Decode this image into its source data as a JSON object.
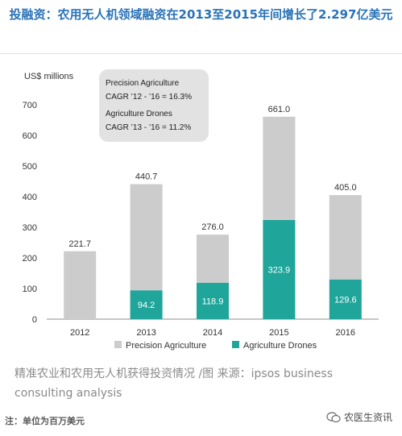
{
  "headline": "投融资：农用无人机领域融资在2013至2015年间增长了2.297亿美元",
  "chart_data": {
    "type": "bar",
    "stacked": true,
    "unit_label": "US$ millions",
    "categories": [
      "2012",
      "2013",
      "2014",
      "2015",
      "2016"
    ],
    "totals": [
      221.7,
      440.7,
      276.0,
      661.0,
      405.0
    ],
    "total_labels": [
      "221.7",
      "440.7",
      "276.0",
      "661.0",
      "405.0"
    ],
    "series": [
      {
        "name": "Agriculture Drones",
        "values": [
          0,
          94.2,
          118.9,
          323.9,
          129.6
        ],
        "labels": [
          "",
          "94.2",
          "118.9",
          "323.9",
          "129.6"
        ],
        "color": "#1fa59a"
      },
      {
        "name": "Precision Agriculture",
        "values": [
          221.7,
          346.5,
          157.1,
          337.1,
          275.4
        ],
        "color": "#cccccc"
      }
    ],
    "y_ticks": [
      0,
      100,
      200,
      300,
      400,
      500,
      600,
      700
    ],
    "ylim": [
      0,
      700
    ],
    "grid": false,
    "legend": [
      "Precision Agriculture",
      "Agriculture Drones"
    ],
    "legend_placement": "bottom",
    "annotation": {
      "line1": "Precision Agriculture",
      "line2": "CAGR ’12 - ’16 = 16.3%",
      "line3": "Agriculture Drones",
      "line4": "CAGR ’13 - ’16 = 11.2%"
    }
  },
  "source_text": "精准农业和农用无人机获得投资情况 /图 来源：ipsos business consulting analysis",
  "note_text": "注：单位为百万美元",
  "watermark_text": "农医生资讯"
}
